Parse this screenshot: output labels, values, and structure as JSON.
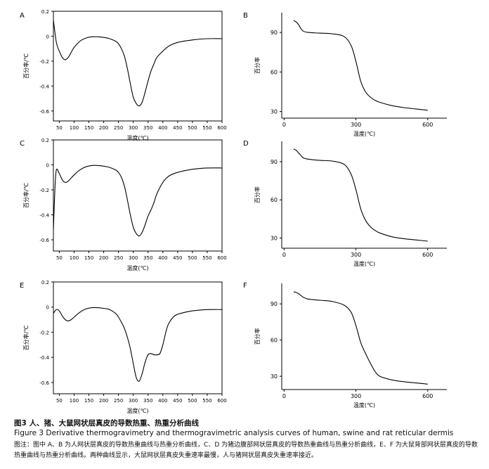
{
  "figure": {
    "caption_title_zh": "图3   人、猪、大鼠网状层真皮的导数热重、热重分析曲线",
    "caption_title_en": "Figure 3    Derivative thermogravimetry and thermogravimetric analysis curves of human, swine and rat reticular dermis",
    "caption_note": "图注：图中 A、B 为人网状层真皮的导数热重曲线与热重分析曲线，C、D 为猪边腹部网状层真皮的导数热重曲线与热重分析曲线，E、F 为大鼠背部网状层真皮的导数热重曲线与热重分析曲线。两种曲线显示，大鼠网状层真皮失重速率最慢，人与猪网状层真皮失重速率接近。"
  },
  "chart_data": [
    {
      "panel": "A",
      "type": "line",
      "title": "",
      "xlabel": "温度(℃)",
      "ylabel": "百分率/℃",
      "xlim": [
        30,
        600
      ],
      "ylim": [
        -0.68,
        0.2
      ],
      "xticks": [
        50,
        100,
        150,
        200,
        250,
        300,
        350,
        400,
        450,
        500,
        550,
        600
      ],
      "yticks": [
        0.2,
        0,
        -0.2,
        -0.4,
        -0.6
      ],
      "grid": false,
      "series": [
        {
          "x": [
            30,
            40,
            50,
            60,
            70,
            80,
            90,
            100,
            120,
            140,
            160,
            180,
            200,
            220,
            240,
            250,
            260,
            270,
            280,
            290,
            300,
            310,
            320,
            330,
            340,
            350,
            360,
            370,
            380,
            400,
            420,
            450,
            500,
            550,
            600
          ],
          "y": [
            0.13,
            -0.05,
            -0.12,
            -0.17,
            -0.19,
            -0.17,
            -0.13,
            -0.09,
            -0.04,
            -0.015,
            -0.005,
            -0.005,
            -0.01,
            -0.02,
            -0.04,
            -0.06,
            -0.1,
            -0.16,
            -0.26,
            -0.38,
            -0.49,
            -0.54,
            -0.56,
            -0.53,
            -0.45,
            -0.36,
            -0.28,
            -0.22,
            -0.17,
            -0.12,
            -0.08,
            -0.05,
            -0.03,
            -0.02,
            -0.02
          ]
        }
      ]
    },
    {
      "panel": "B",
      "type": "line",
      "title": "",
      "xlabel": "温度(℃)",
      "ylabel": "百分率",
      "xlim": [
        -10,
        680
      ],
      "ylim": [
        25,
        105
      ],
      "xticks": [
        0,
        300,
        600
      ],
      "yticks": [
        90,
        60,
        30
      ],
      "grid": false,
      "series": [
        {
          "x": [
            40,
            50,
            60,
            70,
            80,
            100,
            150,
            200,
            250,
            280,
            300,
            320,
            340,
            360,
            380,
            400,
            450,
            500,
            550,
            600
          ],
          "y": [
            99,
            98,
            96,
            93,
            91,
            90,
            89.5,
            89,
            87,
            80,
            68,
            53,
            45,
            41,
            38.5,
            37,
            34.5,
            33,
            32,
            31
          ]
        }
      ]
    },
    {
      "panel": "C",
      "type": "line",
      "title": "",
      "xlabel": "温度(℃)",
      "ylabel": "百分率/℃",
      "xlim": [
        30,
        600
      ],
      "ylim": [
        -0.69,
        0.2
      ],
      "xticks": [
        50,
        100,
        150,
        200,
        250,
        300,
        350,
        400,
        450,
        500,
        550,
        600
      ],
      "yticks": [
        0.2,
        0,
        -0.2,
        -0.4,
        -0.6
      ],
      "grid": false,
      "series": [
        {
          "x": [
            30,
            35,
            40,
            50,
            60,
            70,
            80,
            100,
            120,
            140,
            160,
            180,
            200,
            220,
            240,
            250,
            260,
            270,
            280,
            290,
            300,
            310,
            320,
            330,
            340,
            350,
            360,
            370,
            380,
            400,
            420,
            450,
            500,
            550,
            600
          ],
          "y": [
            -0.52,
            -0.2,
            -0.04,
            -0.07,
            -0.12,
            -0.14,
            -0.13,
            -0.08,
            -0.04,
            -0.015,
            -0.005,
            -0.005,
            -0.01,
            -0.02,
            -0.04,
            -0.06,
            -0.1,
            -0.17,
            -0.28,
            -0.4,
            -0.5,
            -0.55,
            -0.57,
            -0.54,
            -0.48,
            -0.41,
            -0.36,
            -0.3,
            -0.23,
            -0.14,
            -0.09,
            -0.06,
            -0.035,
            -0.025,
            -0.025
          ]
        }
      ]
    },
    {
      "panel": "D",
      "type": "line",
      "title": "",
      "xlabel": "温度(℃)",
      "ylabel": "百分率",
      "xlim": [
        -10,
        680
      ],
      "ylim": [
        22,
        106
      ],
      "xticks": [
        0,
        300,
        600
      ],
      "yticks": [
        90,
        60,
        30
      ],
      "grid": false,
      "series": [
        {
          "x": [
            40,
            50,
            60,
            70,
            80,
            100,
            150,
            200,
            250,
            280,
            300,
            320,
            340,
            360,
            380,
            400,
            450,
            500,
            550,
            600
          ],
          "y": [
            100,
            99,
            97,
            95,
            93,
            92,
            91,
            90.5,
            88,
            80,
            68,
            53,
            44,
            39,
            36,
            34,
            31,
            29.5,
            28.5,
            27.5
          ]
        }
      ]
    },
    {
      "panel": "E",
      "type": "line",
      "title": "",
      "xlabel": "温度(℃)",
      "ylabel": "百分率/℃",
      "xlim": [
        30,
        600
      ],
      "ylim": [
        -0.69,
        0.2
      ],
      "xticks": [
        50,
        100,
        150,
        200,
        250,
        300,
        350,
        400,
        450,
        500,
        550,
        600
      ],
      "yticks": [
        0.2,
        0,
        -0.2,
        -0.4,
        -0.6
      ],
      "grid": false,
      "series": [
        {
          "x": [
            30,
            40,
            50,
            60,
            70,
            80,
            90,
            100,
            120,
            140,
            160,
            180,
            200,
            220,
            240,
            250,
            260,
            270,
            280,
            290,
            300,
            310,
            320,
            330,
            340,
            350,
            360,
            370,
            380,
            390,
            400,
            410,
            420,
            440,
            460,
            500,
            550,
            600
          ],
          "y": [
            -0.05,
            -0.02,
            -0.03,
            -0.07,
            -0.1,
            -0.11,
            -0.1,
            -0.08,
            -0.04,
            -0.015,
            -0.005,
            -0.005,
            -0.01,
            -0.02,
            -0.05,
            -0.08,
            -0.12,
            -0.17,
            -0.24,
            -0.33,
            -0.45,
            -0.56,
            -0.59,
            -0.53,
            -0.44,
            -0.38,
            -0.37,
            -0.38,
            -0.38,
            -0.37,
            -0.3,
            -0.2,
            -0.13,
            -0.07,
            -0.05,
            -0.03,
            -0.02,
            -0.02
          ]
        }
      ]
    },
    {
      "panel": "F",
      "type": "line",
      "title": "",
      "xlabel": "温度(℃)",
      "ylabel": "百分率",
      "xlim": [
        -10,
        680
      ],
      "ylim": [
        19,
        107
      ],
      "xticks": [
        0,
        300,
        600
      ],
      "yticks": [
        90,
        60,
        30
      ],
      "grid": false,
      "series": [
        {
          "x": [
            40,
            50,
            60,
            70,
            80,
            100,
            150,
            200,
            250,
            280,
            300,
            320,
            340,
            360,
            380,
            400,
            450,
            500,
            550,
            600
          ],
          "y": [
            100,
            99.5,
            98.5,
            97,
            95.5,
            94,
            93,
            92,
            89,
            83,
            72,
            58,
            49,
            41,
            34,
            30,
            27,
            25.5,
            24.5,
            23.5
          ]
        }
      ]
    }
  ]
}
